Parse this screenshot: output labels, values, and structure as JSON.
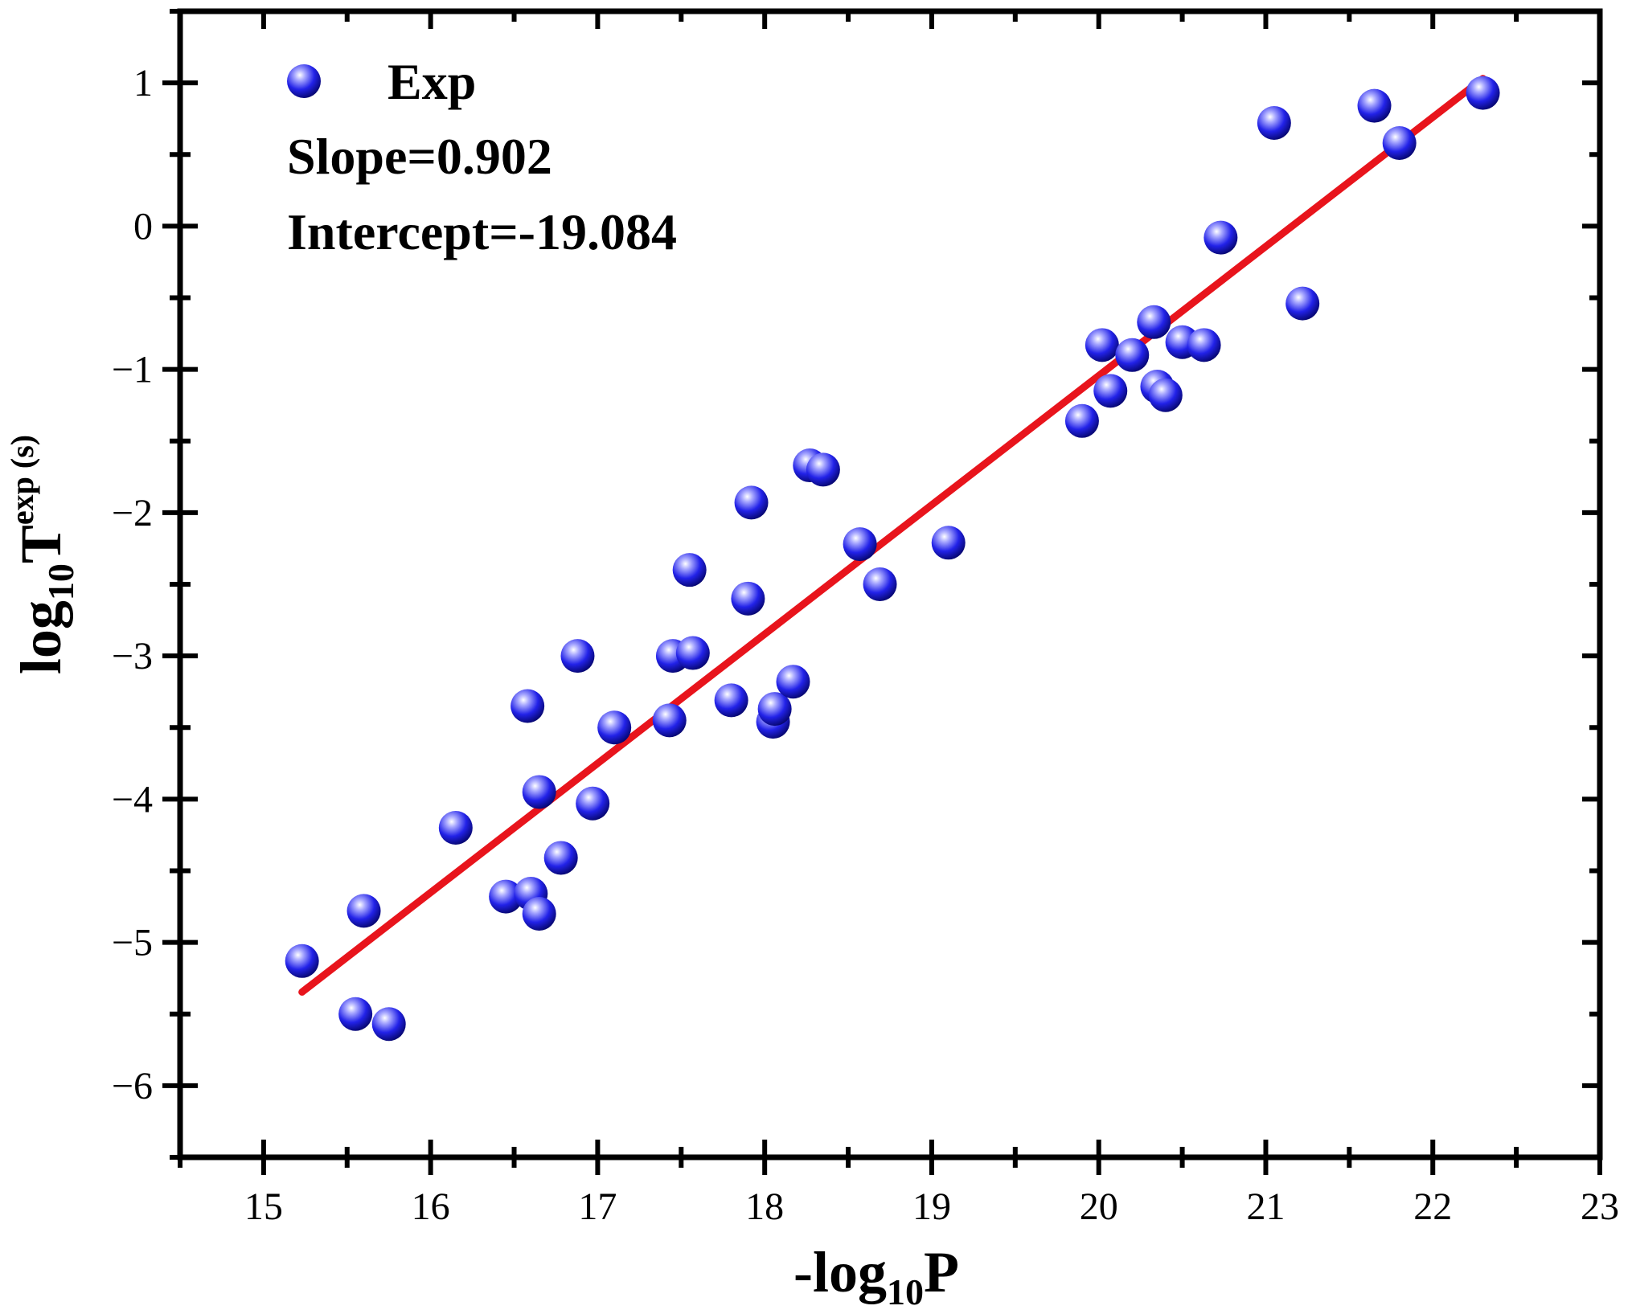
{
  "chart_data": {
    "type": "scatter",
    "xlabel": {
      "prefix": "-log",
      "sub": "10",
      "suffix": "P"
    },
    "ylabel": {
      "prefix": "log",
      "sub": "10",
      "main": "T",
      "sup": "exp (s)"
    },
    "xlim": [
      14.5,
      23
    ],
    "ylim": [
      -6.5,
      1.5
    ],
    "xticks": [
      15,
      16,
      17,
      18,
      19,
      20,
      21,
      22,
      23
    ],
    "yticks": [
      1,
      0,
      -1,
      -2,
      -3,
      -4,
      -5,
      -6
    ],
    "ytick_labels": [
      "1",
      "0",
      "−1",
      "−2",
      "−3",
      "−4",
      "−5",
      "−6"
    ],
    "grid": false,
    "legend": {
      "position": "top-left",
      "label": "Exp"
    },
    "annotations": [
      "Slope=0.902",
      "Intercept=-19.084"
    ],
    "colors": {
      "points": "#1a1aff",
      "fit": "#e8141c",
      "axis": "#000000"
    },
    "series": [
      {
        "name": "Exp",
        "x": [
          15.23,
          15.55,
          15.6,
          15.75,
          16.15,
          16.45,
          16.58,
          16.6,
          16.65,
          16.65,
          16.78,
          16.88,
          16.97,
          17.1,
          17.43,
          17.45,
          17.55,
          17.57,
          17.8,
          17.9,
          17.92,
          18.05,
          18.06,
          18.17,
          18.27,
          18.35,
          18.57,
          18.69,
          19.1,
          19.9,
          20.02,
          20.07,
          20.2,
          20.33,
          20.35,
          20.4,
          20.5,
          20.63,
          20.73,
          21.05,
          21.22,
          21.65,
          21.8,
          22.3
        ],
        "y": [
          -5.13,
          -5.5,
          -4.78,
          -5.57,
          -4.2,
          -4.68,
          -3.35,
          -4.66,
          -4.8,
          -3.95,
          -4.41,
          -3.0,
          -4.03,
          -3.5,
          -3.45,
          -3.0,
          -2.4,
          -2.98,
          -3.31,
          -2.6,
          -1.93,
          -3.46,
          -3.37,
          -3.18,
          -1.67,
          -1.7,
          -2.22,
          -2.5,
          -2.21,
          -1.36,
          -0.83,
          -1.15,
          -0.9,
          -0.67,
          -1.12,
          -1.18,
          -0.81,
          -0.83,
          -0.08,
          0.72,
          -0.54,
          0.84,
          0.58,
          0.93
        ]
      }
    ],
    "fit_line": {
      "slope": 0.902,
      "intercept": -19.084,
      "x_range": [
        15.23,
        22.3
      ]
    }
  }
}
